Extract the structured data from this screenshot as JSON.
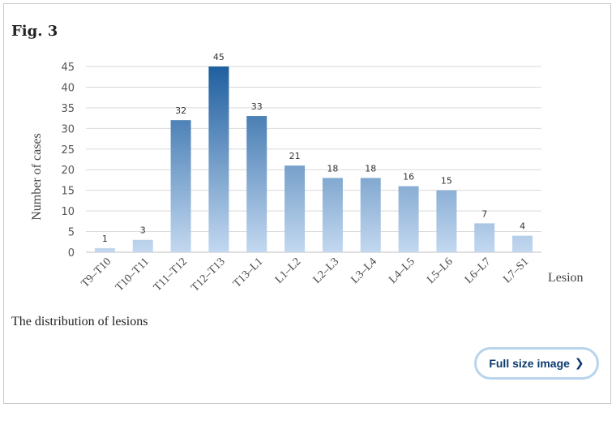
{
  "figure": {
    "title": "Fig. 3",
    "caption": "The distribution of lesions"
  },
  "actions": {
    "full_size_label": "Full size image",
    "chevron_icon": "chevron-right-icon"
  },
  "chart_data": {
    "type": "bar",
    "categories": [
      "T9–T10",
      "T10–T11",
      "T11–T12",
      "T12–T13",
      "T13–L1",
      "L1–L2",
      "L2–L3",
      "L3–L4",
      "L4–L5",
      "L5–L6",
      "L6–L7",
      "L7–S1"
    ],
    "values": [
      1,
      3,
      32,
      45,
      33,
      21,
      18,
      18,
      16,
      15,
      7,
      4
    ],
    "xlabel": "Lesion",
    "ylabel": "Number of cases",
    "ylim": [
      0,
      45
    ],
    "yticks": [
      0,
      5,
      10,
      15,
      20,
      25,
      30,
      35,
      40,
      45
    ],
    "grid": true,
    "data_labels": true,
    "colors": {
      "bar_low": "#c3d8f0",
      "bar_high": "#1f5f9f",
      "grid": "#d9d9d9",
      "axis": "#bfbfbf"
    }
  }
}
